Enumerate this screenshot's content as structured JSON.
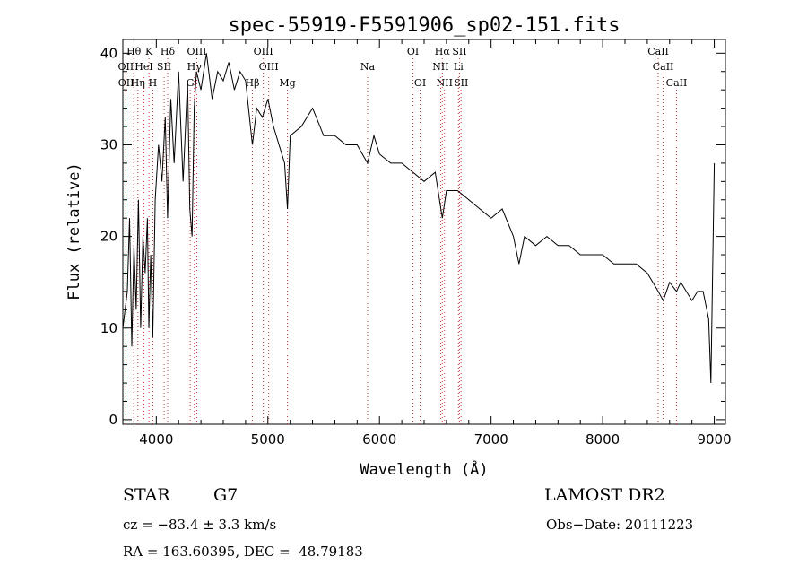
{
  "chart_data": {
    "type": "line",
    "title": "spec-55919-F5591906_sp02-151.fits",
    "xlabel": "Wavelength (Å)",
    "ylabel": "Flux (relative)",
    "xlim": [
      3700,
      9100
    ],
    "ylim": [
      -0.5,
      41.5
    ],
    "x_ticks": [
      4000,
      5000,
      6000,
      7000,
      8000,
      9000
    ],
    "y_ticks": [
      0,
      10,
      20,
      30,
      40
    ],
    "grid": false,
    "series": [
      {
        "x": [
          3700,
          3740,
          3760,
          3780,
          3800,
          3820,
          3840,
          3860,
          3880,
          3900,
          3920,
          3933,
          3950,
          3968,
          3990,
          4020,
          4050,
          4080,
          4101,
          4130,
          4160,
          4200,
          4240,
          4280,
          4300,
          4320,
          4340,
          4360,
          4400,
          4450,
          4500,
          4550,
          4600,
          4650,
          4700,
          4750,
          4800,
          4861,
          4900,
          4950,
          5000,
          5050,
          5100,
          5150,
          5175,
          5200,
          5300,
          5400,
          5500,
          5600,
          5700,
          5800,
          5893,
          5950,
          6000,
          6100,
          6200,
          6300,
          6400,
          6500,
          6563,
          6600,
          6700,
          6800,
          6900,
          7000,
          7100,
          7200,
          7250,
          7300,
          7400,
          7500,
          7600,
          7700,
          7800,
          7900,
          8000,
          8100,
          8200,
          8300,
          8400,
          8498,
          8542,
          8600,
          8662,
          8700,
          8800,
          8850,
          8900,
          8950,
          8970,
          9000
        ],
        "y": [
          10,
          14,
          22,
          8,
          19,
          12,
          24,
          10,
          20,
          16,
          22,
          10,
          18,
          9,
          24,
          30,
          26,
          33,
          22,
          35,
          28,
          38,
          26,
          37,
          23,
          20,
          34,
          38,
          36,
          40,
          35,
          38,
          37,
          39,
          36,
          38,
          37,
          30,
          34,
          33,
          35,
          32,
          30,
          28,
          23,
          31,
          32,
          34,
          31,
          31,
          30,
          30,
          28,
          31,
          29,
          28,
          28,
          27,
          26,
          27,
          22,
          25,
          25,
          24,
          23,
          22,
          23,
          20,
          17,
          20,
          19,
          20,
          19,
          19,
          18,
          18,
          18,
          17,
          17,
          17,
          16,
          14,
          13,
          15,
          14,
          15,
          13,
          14,
          14,
          11,
          4,
          28
        ]
      }
    ],
    "lines": [
      {
        "label": "Hθ",
        "x": 3798,
        "row": 1
      },
      {
        "label": "K",
        "x": 3934,
        "row": 1
      },
      {
        "label": "Hδ",
        "x": 4102,
        "row": 1
      },
      {
        "label": "OIII",
        "x": 4363,
        "row": 1
      },
      {
        "label": "OIII",
        "x": 4959,
        "row": 1
      },
      {
        "label": "OI",
        "x": 6300,
        "row": 1
      },
      {
        "label": "Hα",
        "x": 6563,
        "row": 1
      },
      {
        "label": "SII",
        "x": 6717,
        "row": 1
      },
      {
        "label": "CaII",
        "x": 8498,
        "row": 1
      },
      {
        "label": "OII",
        "x": 3727,
        "row": 2
      },
      {
        "label": "HeI",
        "x": 3889,
        "row": 2
      },
      {
        "label": "SII",
        "x": 4070,
        "row": 2
      },
      {
        "label": "Hγ",
        "x": 4341,
        "row": 2
      },
      {
        "label": "OIII",
        "x": 5007,
        "row": 2
      },
      {
        "label": "Na",
        "x": 5893,
        "row": 2
      },
      {
        "label": "NII",
        "x": 6548,
        "row": 2
      },
      {
        "label": "Li",
        "x": 6708,
        "row": 2
      },
      {
        "label": "CaII",
        "x": 8542,
        "row": 2
      },
      {
        "label": "OII",
        "x": 3729,
        "row": 3
      },
      {
        "label": "Hη",
        "x": 3835,
        "row": 3
      },
      {
        "label": "H",
        "x": 3969,
        "row": 3
      },
      {
        "label": "G",
        "x": 4304,
        "row": 3
      },
      {
        "label": "Hβ",
        "x": 4861,
        "row": 3
      },
      {
        "label": "Mg",
        "x": 5175,
        "row": 3
      },
      {
        "label": "OI",
        "x": 6364,
        "row": 3
      },
      {
        "label": "NII",
        "x": 6583,
        "row": 3
      },
      {
        "label": "SII",
        "x": 6731,
        "row": 3
      },
      {
        "label": "CaII",
        "x": 8662,
        "row": 3
      }
    ]
  },
  "info": {
    "class": "STAR",
    "subclass": "G7",
    "survey": "LAMOST DR2",
    "cz": "cz = −83.4 ± 3.3 km/s",
    "obs_date": "Obs−Date: 20111223",
    "coords": "RA = 163.60395, DEC =  48.79183"
  }
}
